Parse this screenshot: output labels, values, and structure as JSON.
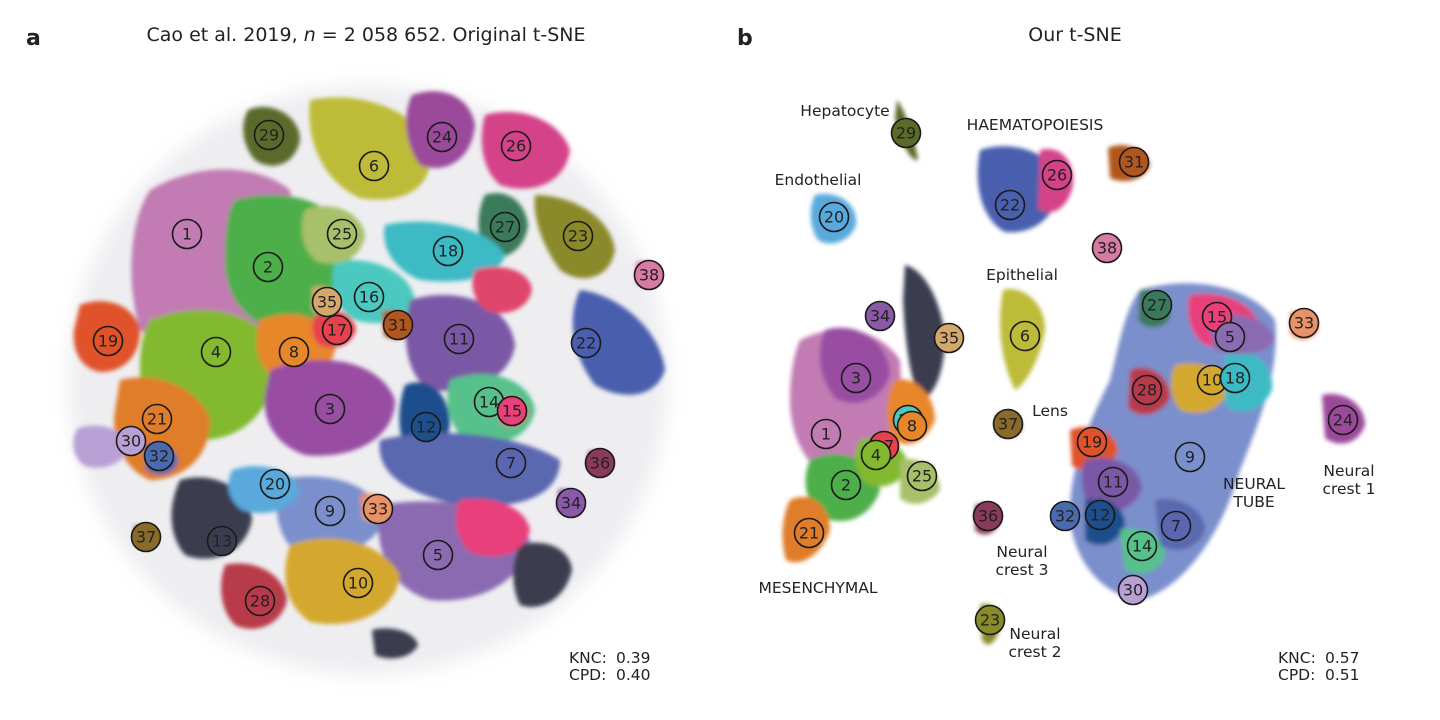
{
  "panels": [
    {
      "letter": "a",
      "title_pre": "Cao et al. 2019, ",
      "title_n": "n",
      "title_post": " = 2 058 652. Original t-SNE",
      "metrics": [
        {
          "name": "KNC:",
          "value": "0.39"
        },
        {
          "name": "CPD:",
          "value": "0.40"
        }
      ],
      "group_labels": []
    },
    {
      "letter": "b",
      "title": "Our t-SNE",
      "metrics": [
        {
          "name": "KNC:",
          "value": "0.57"
        },
        {
          "name": "CPD:",
          "value": "0.51"
        }
      ],
      "group_labels": [
        [
          "Hepatocyte"
        ],
        [
          "HAEMATOPOIESIS"
        ],
        [
          "Endothelial"
        ],
        [
          "Epithelial"
        ],
        [
          "Lens"
        ],
        [
          "NEURAL",
          "TUBE"
        ],
        [
          "Neural",
          "crest 1"
        ],
        [
          "Neural",
          "crest 3"
        ],
        [
          "Neural",
          "crest 2"
        ],
        [
          "MESENCHYMAL"
        ]
      ]
    }
  ],
  "cluster_colors": {
    "1": "#c27bb3",
    "2": "#4daf4a",
    "3": "#984ea3",
    "4": "#82b92e",
    "5": "#8b6bb1",
    "6": "#bdbb39",
    "7": "#5a67b0",
    "8": "#e8862a",
    "9": "#7a8fcc",
    "10": "#d4a82f",
    "11": "#7a58a6",
    "12": "#1f4e8c",
    "13": "#3a3d4f",
    "14": "#56c18a",
    "15": "#e8417a",
    "16": "#4bc9c0",
    "17": "#e8414e",
    "18": "#3cbac4",
    "19": "#e0522a",
    "20": "#5aa9dc",
    "21": "#e07d2a",
    "22": "#4a5fae",
    "23": "#8a8a2a",
    "24": "#9b4a9b",
    "25": "#a8c06a",
    "26": "#d4428a",
    "27": "#3a7a5a",
    "28": "#b83a4a",
    "29": "#5a6a2a",
    "30": "#b8a0d4",
    "31": "#b0561e",
    "32": "#4a6ab0",
    "33": "#e8926a",
    "34": "#8a5aa8",
    "35": "#d4a86a",
    "36": "#8a3a5a",
    "37": "#8a6a2a",
    "38": "#d77aa4"
  },
  "clusters_a": [
    "1",
    "2",
    "3",
    "4",
    "5",
    "6",
    "7",
    "8",
    "9",
    "10",
    "11",
    "12",
    "13",
    "14",
    "15",
    "16",
    "17",
    "18",
    "19",
    "20",
    "21",
    "22",
    "23",
    "24",
    "25",
    "26",
    "27",
    "28",
    "29",
    "30",
    "31",
    "32",
    "33",
    "34",
    "35",
    "36",
    "37",
    "38"
  ],
  "clusters_b": [
    "29",
    "31",
    "26",
    "22",
    "20",
    "38",
    "27",
    "15",
    "33",
    "5",
    "34",
    "3",
    "35",
    "6",
    "28",
    "10",
    "18",
    "24",
    "1",
    "16",
    "8",
    "17",
    "4",
    "37",
    "19",
    "9",
    "25",
    "11",
    "2",
    "32",
    "12",
    "36",
    "7",
    "21",
    "14",
    "30",
    "23"
  ]
}
